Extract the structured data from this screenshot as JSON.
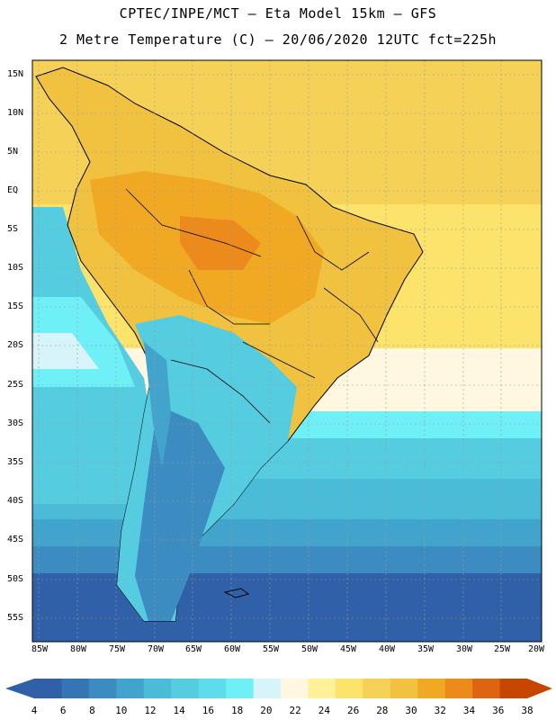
{
  "header": {
    "title_line1": "CPTEC/INPE/MCT –  Eta Model 15km – GFS",
    "title_line2": "2 Metre Temperature (C) – 20/06/2020 12UTC fct=225h"
  },
  "map": {
    "latitudes": [
      "15N",
      "10N",
      "5N",
      "EQ",
      "5S",
      "10S",
      "15S",
      "20S",
      "25S",
      "30S",
      "35S",
      "40S",
      "45S",
      "50S",
      "55S"
    ],
    "longitudes": [
      "85W",
      "80W",
      "75W",
      "70W",
      "65W",
      "60W",
      "55W",
      "50W",
      "45W",
      "40W",
      "35W",
      "30W",
      "25W",
      "20W"
    ],
    "region_temperatures_c": {
      "amazon_basin": 32,
      "north_atlantic": 28,
      "south_atlantic_subtropical": 22,
      "patagonia": 6,
      "southern_ocean": 6
    }
  },
  "legend": {
    "values": [
      "4",
      "6",
      "8",
      "10",
      "12",
      "14",
      "16",
      "18",
      "20",
      "22",
      "24",
      "26",
      "28",
      "30",
      "32",
      "34",
      "36",
      "38"
    ],
    "colors": [
      "#3060a8",
      "#3575b5",
      "#3c8cc2",
      "#42a4cc",
      "#4bbcd8",
      "#55cce0",
      "#5fdcec",
      "#6ef0f6",
      "#d7f4fa",
      "#fff7e0",
      "#fff09a",
      "#fbe36c",
      "#f5d257",
      "#f0c23f",
      "#f1a923",
      "#ec8b1c",
      "#df6411",
      "#c64600"
    ]
  }
}
